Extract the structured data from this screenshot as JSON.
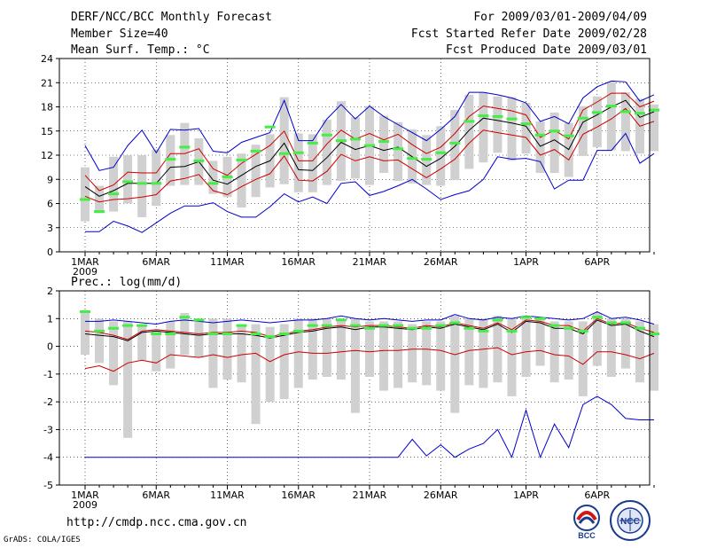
{
  "header": {
    "title": "DERF/NCC/BCC Monthly Forecast",
    "member_size": "Member Size=40",
    "variable": "Mean Surf. Temp.: °C",
    "period": "For 2009/03/01-2009/04/09",
    "started": "Fcst Started Refer Date 2009/02/28",
    "produced": "Fcst Produced Date 2009/03/01"
  },
  "footer": {
    "url": "http://cmdp.ncc.cma.gov.cn",
    "credit": "GrADS: COLA/IGES"
  },
  "logos": {
    "bcc_label": "BCC",
    "ncc_label": "NCC"
  },
  "colors": {
    "envelope": "#0000cc",
    "spread": "#cc0000",
    "mean": "#000000",
    "box": "#d0d0d0",
    "median": "#44ee44",
    "grid": "#000000"
  },
  "chart_data": [
    {
      "type": "line",
      "title": "Mean Surf. Temp.: °C",
      "ylim": [
        0,
        24
      ],
      "yticks": [
        0,
        3,
        6,
        9,
        12,
        15,
        18,
        21,
        24
      ],
      "xlabels": [
        "1MAR",
        "6MAR",
        "11MAR",
        "16MAR",
        "21MAR",
        "26MAR",
        "1APR",
        "6APR"
      ],
      "xlabel_positions": [
        0,
        5,
        10,
        15,
        20,
        25,
        31,
        36
      ],
      "year_label": "2009",
      "days": 40,
      "series": [
        {
          "name": "ensemble-max",
          "values": [
            13.2,
            10.1,
            10.5,
            13.2,
            15.1,
            12.3,
            15.2,
            15.1,
            15.3,
            12.5,
            12.3,
            13.6,
            14.2,
            14.8,
            18.8,
            13.8,
            13.8,
            16.5,
            18.3,
            16.5,
            18.1,
            16.8,
            15.8,
            14.8,
            13.8,
            15.2,
            16.8,
            19.8,
            19.8,
            19.5,
            19.1,
            18.5,
            16.2,
            16.8,
            15.9,
            19.1,
            20.5,
            21.2,
            21.1,
            18.7,
            19.5
          ]
        },
        {
          "name": "ensemble-min",
          "values": [
            2.5,
            2.5,
            3.8,
            3.2,
            2.4,
            3.6,
            4.8,
            5.7,
            5.7,
            6.1,
            5.0,
            4.3,
            4.3,
            5.6,
            7.2,
            6.2,
            6.8,
            6.0,
            8.5,
            8.7,
            7.0,
            7.5,
            8.2,
            9.0,
            7.8,
            6.5,
            7.1,
            7.6,
            9.0,
            11.8,
            11.5,
            11.6,
            11.2,
            7.8,
            8.9,
            8.9,
            12.6,
            12.6,
            14.7,
            11.0,
            12.2
          ]
        },
        {
          "name": "spread-upper",
          "values": [
            9.5,
            7.6,
            8.3,
            9.9,
            9.8,
            9.8,
            12.2,
            12.2,
            12.8,
            10.3,
            9.5,
            11.0,
            12.1,
            13.2,
            15.0,
            11.3,
            11.3,
            13.4,
            15.1,
            14.0,
            14.7,
            13.9,
            14.6,
            13.3,
            12.2,
            13.0,
            14.7,
            16.8,
            18.1,
            17.8,
            17.5,
            17.0,
            14.2,
            15.1,
            14.0,
            17.6,
            18.6,
            19.7,
            19.7,
            18.0,
            18.7
          ]
        },
        {
          "name": "mean",
          "values": [
            8.1,
            6.9,
            7.6,
            8.5,
            8.5,
            8.5,
            10.5,
            10.6,
            11.2,
            8.9,
            8.4,
            9.5,
            10.6,
            11.3,
            13.5,
            10.2,
            10.1,
            11.7,
            13.6,
            12.7,
            13.2,
            12.6,
            13.0,
            11.8,
            10.6,
            11.6,
            13.1,
            15.1,
            16.6,
            16.3,
            16.0,
            15.6,
            13.1,
            13.9,
            12.7,
            16.1,
            17.0,
            18.0,
            18.8,
            16.7,
            17.4
          ]
        },
        {
          "name": "spread-lower",
          "values": [
            6.9,
            6.2,
            6.5,
            6.6,
            6.8,
            7.1,
            8.8,
            9.1,
            9.6,
            7.6,
            7.1,
            8.1,
            9.0,
            9.7,
            11.9,
            8.9,
            8.8,
            10.0,
            12.1,
            11.3,
            11.8,
            11.3,
            11.4,
            10.3,
            9.2,
            10.3,
            11.5,
            13.5,
            15.1,
            14.8,
            14.5,
            14.2,
            12.0,
            12.7,
            11.4,
            14.6,
            15.5,
            16.5,
            17.8,
            15.6,
            16.2
          ]
        }
      ],
      "boxes": {
        "lows": [
          3.8,
          4.8,
          5.0,
          6.0,
          4.3,
          5.7,
          8.2,
          8.3,
          8.3,
          7.2,
          6.8,
          5.5,
          6.8,
          8.0,
          8.4,
          7.4,
          7.4,
          8.3,
          8.8,
          9.1,
          8.3,
          9.8,
          8.8,
          8.5,
          8.3,
          8.2,
          8.9,
          10.3,
          11.1,
          12.3,
          11.3,
          12.2,
          9.8,
          9.8,
          9.3,
          11.9,
          13.0,
          12.6,
          12.5,
          12.2,
          12.5
        ],
        "highs": [
          10.5,
          8.2,
          11.8,
          12.0,
          12.0,
          12.7,
          14.5,
          16.0,
          14.1,
          11.3,
          11.8,
          12.2,
          13.3,
          14.6,
          19.2,
          14.7,
          14.6,
          16.4,
          18.7,
          16.7,
          18.1,
          16.9,
          16.1,
          15.2,
          14.5,
          15.6,
          17.6,
          19.5,
          19.8,
          19.3,
          19.2,
          18.5,
          16.2,
          17.3,
          16.0,
          18.1,
          19.3,
          21.1,
          19.8,
          19.0,
          18.3
        ],
        "medians": [
          6.5,
          5.0,
          7.2,
          8.7,
          8.5,
          8.5,
          11.5,
          13.0,
          11.3,
          8.5,
          9.3,
          11.4,
          12.5,
          15.5,
          12.2,
          12.3,
          13.5,
          14.5,
          13.8,
          14.0,
          13.2,
          13.7,
          12.8,
          11.6,
          11.5,
          12.3,
          13.5,
          16.2,
          16.9,
          16.8,
          16.5,
          15.9,
          14.5,
          15.0,
          14.4,
          16.6,
          17.3,
          18.1,
          17.4,
          17.2,
          17.6
        ]
      }
    },
    {
      "type": "line",
      "title": "Prec.: log(mm/d)",
      "ylim": [
        -5,
        2
      ],
      "yticks": [
        -5,
        -4,
        -3,
        -2,
        -1,
        0,
        1,
        2
      ],
      "xlabels": [
        "1MAR",
        "6MAR",
        "11MAR",
        "16MAR",
        "21MAR",
        "26MAR",
        "1APR",
        "6APR"
      ],
      "xlabel_positions": [
        0,
        5,
        10,
        15,
        20,
        25,
        31,
        36
      ],
      "year_label": "2009",
      "days": 40,
      "series": [
        {
          "name": "ensemble-max",
          "values": [
            0.9,
            0.9,
            0.95,
            0.9,
            0.85,
            0.8,
            0.9,
            0.95,
            0.9,
            0.85,
            0.9,
            0.95,
            0.9,
            0.85,
            0.9,
            0.95,
            0.95,
            1.0,
            1.1,
            1.0,
            0.95,
            1.0,
            0.95,
            0.9,
            0.95,
            0.95,
            1.15,
            1.0,
            0.95,
            1.05,
            1.0,
            1.1,
            1.05,
            1.0,
            0.95,
            1.0,
            1.25,
            1.0,
            1.05,
            0.95,
            0.8
          ]
        },
        {
          "name": "ensemble-min",
          "values": [
            -4.0,
            -4.0,
            -4.0,
            -4.0,
            -4.0,
            -4.0,
            -4.0,
            -4.0,
            -4.0,
            -4.0,
            -4.0,
            -4.0,
            -4.0,
            -4.0,
            -4.0,
            -4.0,
            -4.0,
            -4.0,
            -4.0,
            -4.0,
            -4.0,
            -4.0,
            -4.0,
            -3.35,
            -3.95,
            -3.55,
            -4.0,
            -3.7,
            -3.5,
            -3.0,
            -4.0,
            -2.3,
            -4.0,
            -2.8,
            -3.65,
            -2.1,
            -1.8,
            -2.1,
            -2.6,
            -2.65,
            -2.65
          ]
        },
        {
          "name": "spread-upper",
          "values": [
            0.55,
            0.5,
            0.4,
            0.25,
            0.55,
            0.6,
            0.55,
            0.5,
            0.45,
            0.5,
            0.5,
            0.55,
            0.5,
            0.35,
            0.45,
            0.55,
            0.6,
            0.7,
            0.75,
            0.7,
            0.75,
            0.75,
            0.7,
            0.65,
            0.75,
            0.7,
            0.85,
            0.75,
            0.65,
            0.85,
            0.6,
            0.95,
            0.9,
            0.75,
            0.75,
            0.55,
            1.0,
            0.8,
            0.85,
            0.65,
            0.5
          ]
        },
        {
          "name": "mean",
          "values": [
            0.45,
            0.4,
            0.35,
            0.2,
            0.5,
            0.55,
            0.5,
            0.45,
            0.4,
            0.45,
            0.45,
            0.45,
            0.4,
            0.3,
            0.4,
            0.5,
            0.55,
            0.65,
            0.7,
            0.6,
            0.7,
            0.7,
            0.65,
            0.6,
            0.7,
            0.65,
            0.8,
            0.7,
            0.6,
            0.8,
            0.5,
            0.9,
            0.85,
            0.65,
            0.65,
            0.45,
            0.95,
            0.75,
            0.8,
            0.55,
            0.35
          ]
        },
        {
          "name": "spread-lower",
          "values": [
            -0.8,
            -0.7,
            -0.9,
            -0.6,
            -0.5,
            -0.6,
            -0.3,
            -0.35,
            -0.4,
            -0.3,
            -0.4,
            -0.3,
            -0.25,
            -0.55,
            -0.3,
            -0.2,
            -0.25,
            -0.25,
            -0.2,
            -0.15,
            -0.2,
            -0.15,
            -0.15,
            -0.1,
            -0.1,
            -0.15,
            -0.3,
            -0.15,
            -0.1,
            -0.05,
            -0.3,
            -0.2,
            -0.15,
            -0.3,
            -0.35,
            -0.65,
            -0.2,
            -0.2,
            -0.3,
            -0.45,
            -0.25
          ]
        }
      ],
      "boxes": {
        "lows": [
          -0.3,
          -0.6,
          -1.4,
          -3.3,
          -0.5,
          -0.9,
          -0.8,
          -0.3,
          -0.4,
          -1.5,
          -1.2,
          -1.3,
          -2.8,
          -2.0,
          -1.9,
          -1.5,
          -1.2,
          -1.1,
          -1.2,
          -2.4,
          -1.1,
          -1.6,
          -1.5,
          -1.3,
          -1.4,
          -1.6,
          -2.4,
          -1.4,
          -1.5,
          -1.3,
          -1.8,
          -1.1,
          -0.7,
          -1.3,
          -1.2,
          -1.8,
          -0.7,
          -1.1,
          -0.8,
          -1.3,
          -1.6
        ],
        "highs": [
          1.3,
          1.0,
          0.9,
          0.9,
          0.8,
          0.6,
          0.9,
          1.2,
          1.0,
          1.0,
          1.0,
          0.8,
          0.8,
          0.7,
          0.8,
          1.0,
          1.0,
          1.0,
          1.0,
          1.0,
          0.9,
          0.9,
          0.9,
          0.8,
          0.9,
          0.9,
          1.1,
          1.0,
          1.0,
          1.1,
          1.0,
          1.1,
          1.0,
          0.9,
          0.9,
          0.9,
          1.2,
          1.0,
          1.0,
          0.9,
          0.8
        ],
        "medians": [
          1.25,
          0.55,
          0.65,
          0.75,
          0.75,
          0.45,
          0.45,
          1.05,
          0.95,
          0.45,
          0.45,
          0.75,
          0.45,
          0.35,
          0.45,
          0.55,
          0.75,
          0.75,
          0.95,
          0.75,
          0.65,
          0.75,
          0.75,
          0.65,
          0.65,
          0.75,
          0.85,
          0.65,
          0.55,
          0.95,
          0.55,
          1.05,
          1.0,
          0.75,
          0.65,
          0.55,
          1.05,
          0.85,
          0.85,
          0.65,
          0.45
        ]
      }
    }
  ]
}
